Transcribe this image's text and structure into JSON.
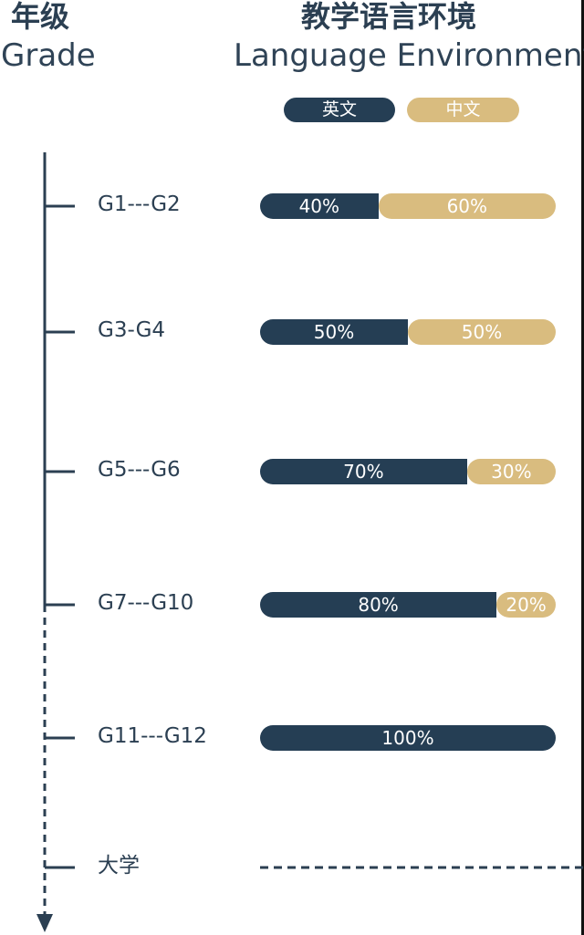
{
  "header": {
    "grade_zh": "年级",
    "grade_en": "Grade",
    "lang_zh": "教学语言环境",
    "lang_en": "Language Environment"
  },
  "legend": [
    {
      "label": "英文",
      "color": "#253e54"
    },
    {
      "label": "中文",
      "color": "#d9bc7f"
    }
  ],
  "chart_data": {
    "type": "bar",
    "stacked": true,
    "orientation": "horizontal",
    "categories": [
      "G1---G2",
      "G3-G4",
      "G5---G6",
      "G7---G10",
      "G11---G12",
      "大学"
    ],
    "series": [
      {
        "name": "英文",
        "color": "#253e54",
        "values": [
          40,
          50,
          70,
          80,
          100,
          null
        ]
      },
      {
        "name": "中文",
        "color": "#d9bc7f",
        "values": [
          60,
          50,
          30,
          20,
          0,
          null
        ]
      }
    ],
    "data_labels": [
      [
        "40%",
        "60%"
      ],
      [
        "50%",
        "50%"
      ],
      [
        "70%",
        "30%"
      ],
      [
        "80%",
        "20%"
      ],
      [
        "100%",
        ""
      ],
      [
        "",
        ""
      ]
    ],
    "xlim": [
      0,
      100
    ],
    "axis_color": "#2b3f52",
    "grid": false
  }
}
